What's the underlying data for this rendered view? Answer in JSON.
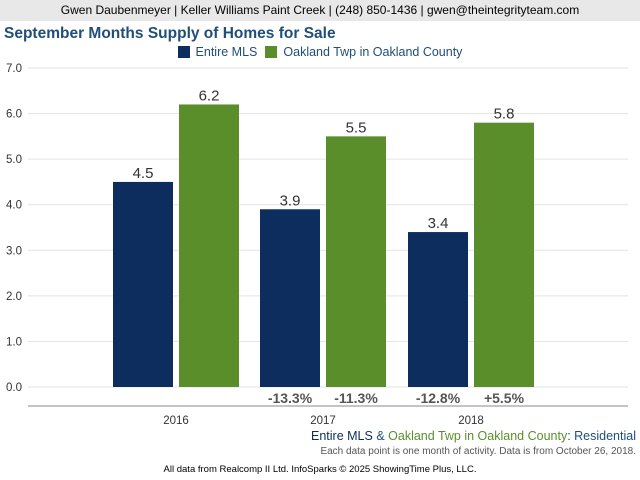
{
  "header": {
    "agent_line": "Gwen Daubenmeyer | Keller Williams Paint Creek | (248) 850-1436 | gwen@theintegrityteam.com"
  },
  "chart_data": {
    "type": "bar",
    "title": "September Months Supply of Homes for Sale",
    "categories": [
      "2016",
      "2017",
      "2018"
    ],
    "series": [
      {
        "name": "Entire MLS",
        "values": [
          4.5,
          3.9,
          3.4
        ],
        "color": "#0d2d5e",
        "changes": [
          "",
          "-13.3%",
          "-12.8%"
        ]
      },
      {
        "name": "Oakland Twp in Oakland County",
        "values": [
          6.2,
          5.5,
          5.8
        ],
        "color": "#5a8e2a",
        "changes": [
          "",
          "-11.3%",
          "+5.5%"
        ]
      }
    ],
    "y_ticks": [
      "0.0",
      "1.0",
      "2.0",
      "3.0",
      "4.0",
      "5.0",
      "6.0",
      "7.0"
    ],
    "ylim": [
      0,
      7
    ],
    "grid": true,
    "legend": "top-center"
  },
  "footer": {
    "series_1": "Entire MLS",
    "connector": " & ",
    "series_2": "Oakland Twp in Oakland County",
    "property_type": ": Residential",
    "note": "Each data point is one month of activity. Data is from October 26, 2018.",
    "credits": "All data from Realcomp II Ltd. InfoSparks © 2025 ShowingTime Plus, LLC."
  }
}
